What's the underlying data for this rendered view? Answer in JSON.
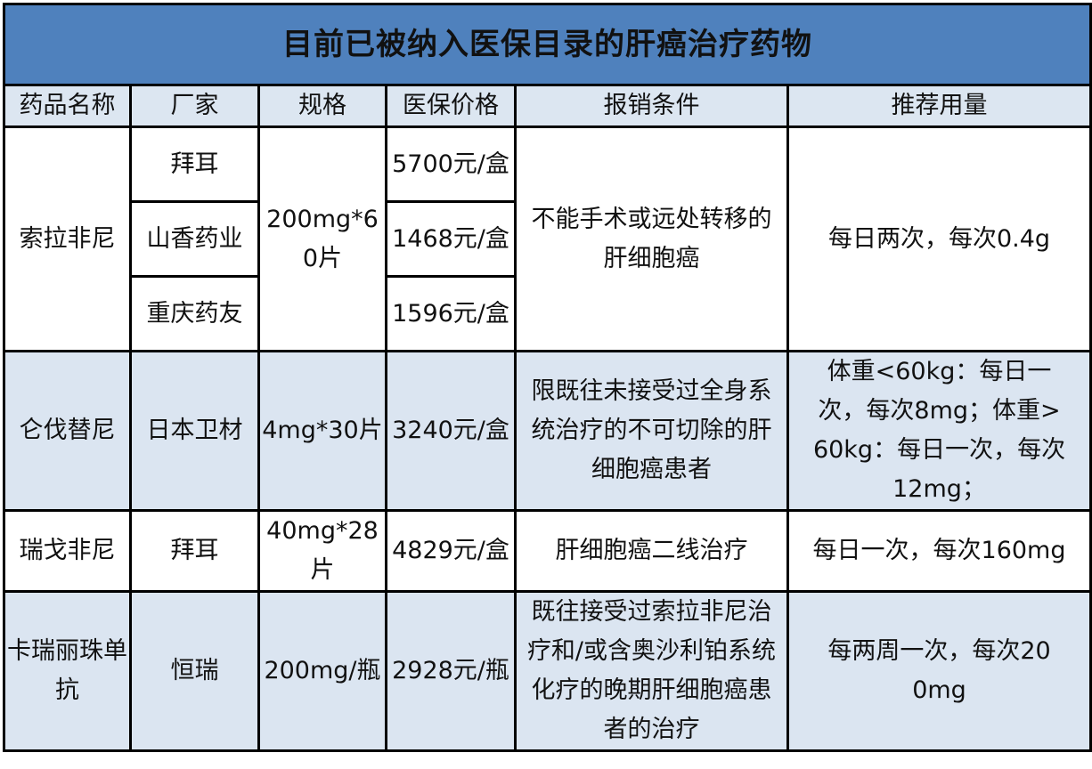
{
  "title": "目前已被纳入医保目录的肝癌治疗药物",
  "colors": {
    "title_bg": "#4f81bd",
    "header_bg": "#dce6f1",
    "alt_row_bg": "#dbe5f1",
    "border": "#000000"
  },
  "headers": [
    "药品名称",
    "厂家",
    "规格",
    "医保价格",
    "报销条件",
    "推荐用量"
  ],
  "rows": [
    {
      "name": "索拉非尼",
      "spec": "200mg*60片",
      "condition": "不能手术或远处转移的肝细胞癌",
      "dosage": "每日两次，每次0.4g",
      "makers": [
        {
          "maker": "拜耳",
          "price": "5700元/盒"
        },
        {
          "maker": "山香药业",
          "price": "1468元/盒"
        },
        {
          "maker": "重庆药友",
          "price": "1596元/盒"
        }
      ]
    },
    {
      "name": "仑伐替尼",
      "maker": "日本卫材",
      "spec": "4mg*30片",
      "price": "3240元/盒",
      "condition": "限既往未接受过全身系统治疗的不可切除的肝细胞癌患者",
      "dosage": "体重<60kg：每日一次，每次8mg；体重>60kg：每日一次，每次12mg；"
    },
    {
      "name": "瑞戈非尼",
      "maker": "拜耳",
      "spec": "40mg*28片",
      "price": "4829元/盒",
      "condition": "肝细胞癌二线治疗",
      "dosage": "每日一次，每次160mg"
    },
    {
      "name": "卡瑞丽珠单抗",
      "maker": "恒瑞",
      "spec": "200mg/瓶",
      "price": "2928元/瓶",
      "condition": "既往接受过索拉非尼治疗和/或含奥沙利铂系统化疗的晚期肝细胞癌患者的治疗",
      "dosage": "每两周一次，每次200mg"
    }
  ]
}
